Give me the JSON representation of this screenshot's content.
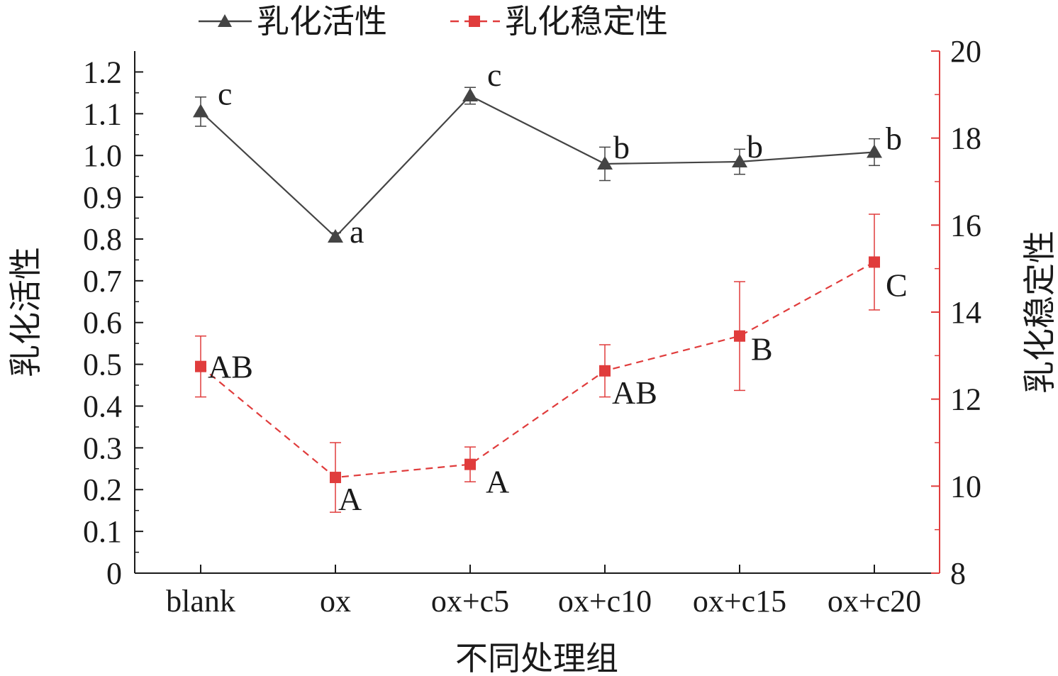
{
  "chart_data": {
    "type": "line",
    "xlabel": "不同处理组",
    "ylabel_left": "乳化活性",
    "ylabel_right": "乳化稳定性",
    "categories": [
      "blank",
      "ox",
      "ox+c5",
      "ox+c10",
      "ox+c15",
      "ox+c20"
    ],
    "y_left": {
      "lim": [
        0,
        1.25
      ],
      "ticks": [
        "0",
        "0.1",
        "0.2",
        "0.3",
        "0.4",
        "0.5",
        "0.6",
        "0.7",
        "0.8",
        "0.9",
        "1.0",
        "1.1",
        "1.2"
      ]
    },
    "y_right": {
      "lim": [
        8,
        20
      ],
      "ticks": [
        "8",
        "10",
        "12",
        "14",
        "16",
        "18",
        "20"
      ]
    },
    "legend_position": "top-left",
    "series": [
      {
        "name": "乳化活性",
        "axis": "left",
        "marker": "triangle",
        "line_style": "solid",
        "color": "#444444",
        "values": [
          1.105,
          0.805,
          1.143,
          0.98,
          0.985,
          1.008
        ],
        "errors": [
          0.035,
          0.01,
          0.02,
          0.04,
          0.03,
          0.032
        ],
        "labels": [
          "c",
          "a",
          "c",
          "b",
          "b",
          "b"
        ]
      },
      {
        "name": "乳化稳定性",
        "axis": "right",
        "marker": "square",
        "line_style": "dashed",
        "color": "#e03c3c",
        "values": [
          12.75,
          10.2,
          10.5,
          12.65,
          13.45,
          15.15
        ],
        "errors": [
          0.7,
          0.8,
          0.4,
          0.6,
          1.25,
          1.1
        ],
        "labels": [
          "AB",
          "A",
          "A",
          "AB",
          "B",
          "C"
        ]
      }
    ]
  },
  "colors": {
    "left_axis": "#1a1a1a",
    "right_axis": "#e03c3c"
  }
}
